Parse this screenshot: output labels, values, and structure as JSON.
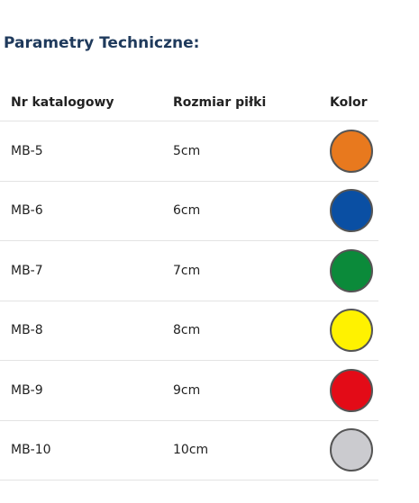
{
  "header": {
    "title": "Parametry Techniczne:"
  },
  "table": {
    "columns": [
      "Nr katalogowy",
      "Rozmiar piłki",
      "Kolor"
    ],
    "rows": [
      {
        "catalog": "MB-5",
        "size": "5cm",
        "color": "#e8791e"
      },
      {
        "catalog": "MB-6",
        "size": "6cm",
        "color": "#0a4fa3"
      },
      {
        "catalog": "MB-7",
        "size": "7cm",
        "color": "#0b8a3a"
      },
      {
        "catalog": "MB-8",
        "size": "8cm",
        "color": "#fff200"
      },
      {
        "catalog": "MB-9",
        "size": "9cm",
        "color": "#e30b17"
      },
      {
        "catalog": "MB-10",
        "size": "10cm",
        "color": "#cbcbcf"
      }
    ]
  }
}
